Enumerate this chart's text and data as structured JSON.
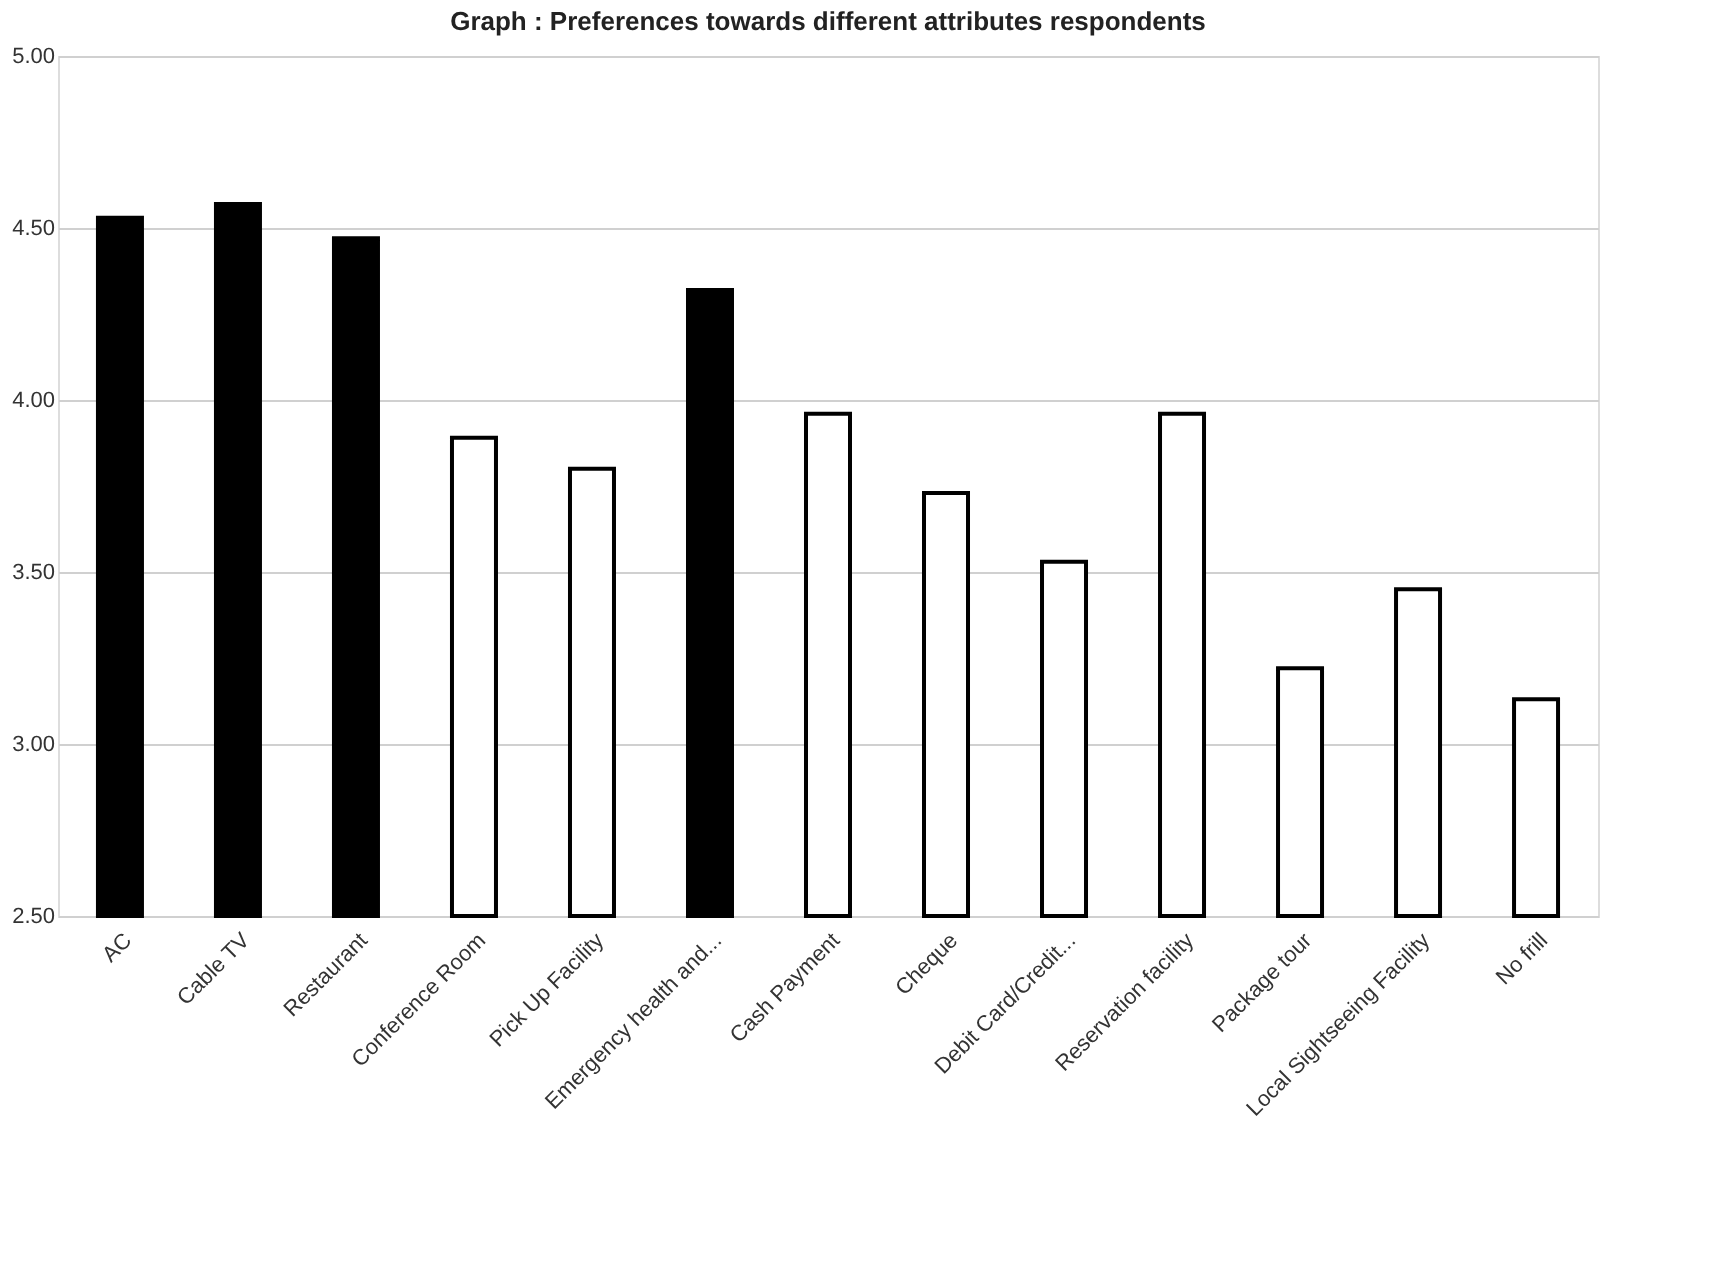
{
  "chart_data": {
    "type": "bar",
    "title": "Graph : Preferences towards different attributes  respondents",
    "categories": [
      "AC",
      "Cable TV",
      "Restaurant",
      "Conference Room",
      "Pick Up Facility",
      "Emergency health and...",
      "Cash Payment",
      "Cheque",
      "Debit Card/Credit...",
      "Reservation facility",
      "Package tour",
      "Local Sightseeing Facility",
      "No frill"
    ],
    "values": [
      4.53,
      4.57,
      4.47,
      3.89,
      3.8,
      4.32,
      3.96,
      3.73,
      3.53,
      3.96,
      3.22,
      3.45,
      3.13
    ],
    "colors": [
      "#000000",
      "#000000",
      "#000000",
      "#ffffff",
      "#ffffff",
      "#000000",
      "#ffffff",
      "#ffffff",
      "#ffffff",
      "#ffffff",
      "#ffffff",
      "#ffffff",
      "#ffffff"
    ],
    "ylim": [
      2.5,
      5.0
    ],
    "yticks": [
      {
        "value": 2.5,
        "label": "2.50"
      },
      {
        "value": 3.0,
        "label": "3.00"
      },
      {
        "value": 3.5,
        "label": "3.50"
      },
      {
        "value": 4.0,
        "label": "4.00"
      },
      {
        "value": 4.5,
        "label": "4.50"
      },
      {
        "value": 5.0,
        "label": "5.00"
      }
    ],
    "grid": "y"
  }
}
